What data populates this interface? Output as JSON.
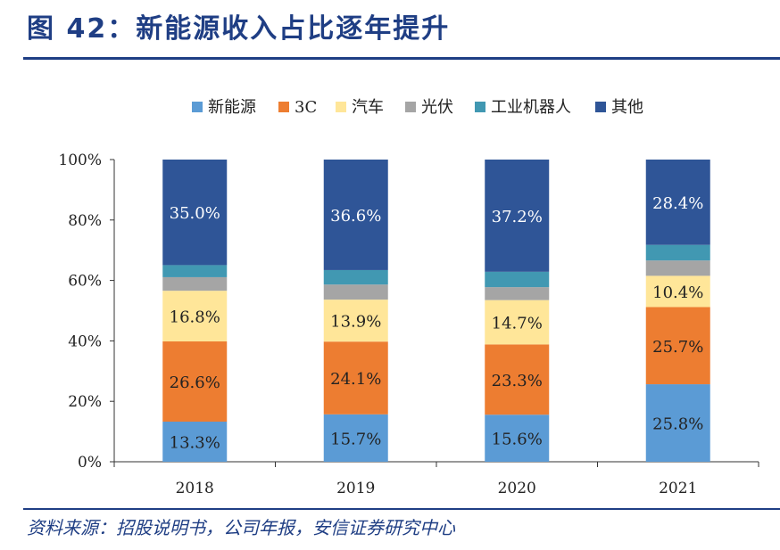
{
  "header": {
    "title": "图 42：新能源收入占比逐年提升"
  },
  "footer": {
    "source": "资料来源：招股说明书，公司年报，安信证券研究中心"
  },
  "chart_data": {
    "type": "bar",
    "stacked": true,
    "categories": [
      "2018",
      "2019",
      "2020",
      "2021"
    ],
    "ylim": [
      0,
      100
    ],
    "yticks": [
      "0%",
      "20%",
      "40%",
      "60%",
      "80%",
      "100%"
    ],
    "legend_position": "top",
    "series": [
      {
        "name": "新能源",
        "color": "#5b9bd5",
        "values": [
          13.3,
          15.7,
          15.6,
          25.8
        ],
        "labels": [
          "13.3%",
          "15.7%",
          "15.6%",
          "25.8%"
        ]
      },
      {
        "name": "3C",
        "color": "#ed7d31",
        "values": [
          26.6,
          24.1,
          23.3,
          25.7
        ],
        "labels": [
          "26.6%",
          "24.1%",
          "23.3%",
          "25.7%"
        ]
      },
      {
        "name": "汽车",
        "color": "#ffe699",
        "values": [
          16.8,
          13.9,
          14.7,
          10.4
        ],
        "labels": [
          "16.8%",
          "13.9%",
          "14.7%",
          "10.4%"
        ]
      },
      {
        "name": "光伏",
        "color": "#a5a5a5",
        "values": [
          4.5,
          5.0,
          4.3,
          5.1
        ],
        "labels": [
          "",
          "",
          "",
          ""
        ]
      },
      {
        "name": "工业机器人",
        "color": "#4198b2",
        "values": [
          4.0,
          4.8,
          5.1,
          5.2
        ],
        "labels": [
          "",
          "",
          "",
          ""
        ]
      },
      {
        "name": "其他",
        "color": "#2f5597",
        "values": [
          35.0,
          36.6,
          37.2,
          28.4
        ],
        "labels": [
          "35.0%",
          "36.6%",
          "37.2%",
          "28.4%"
        ]
      }
    ]
  }
}
